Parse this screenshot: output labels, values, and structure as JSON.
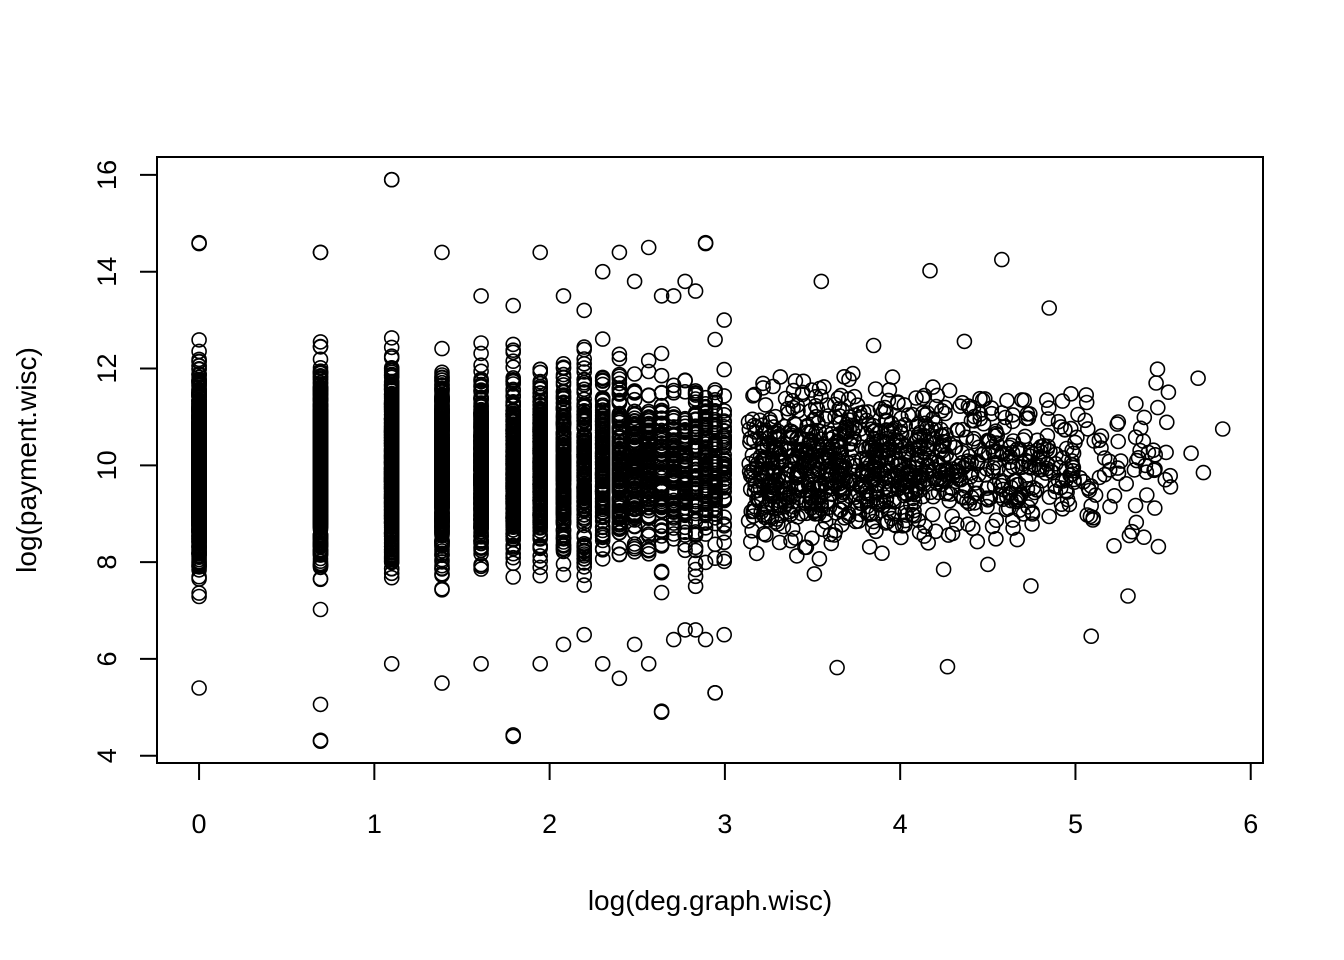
{
  "chart_data": {
    "type": "scatter",
    "title": "",
    "xlabel": "log(deg.graph.wisc)",
    "ylabel": "log(payment.wisc)",
    "xlim": [
      -0.24,
      6.07
    ],
    "ylim": [
      3.85,
      16.37
    ],
    "x_ticks": [
      "0",
      "1",
      "2",
      "3",
      "4",
      "5",
      "6"
    ],
    "y_ticks": [
      "4",
      "6",
      "8",
      "10",
      "12",
      "14",
      "16"
    ],
    "grid": false,
    "legend": "none",
    "marker": "open-circle",
    "colors": {
      "marker": "#000000",
      "axis": "#000000",
      "background": "#ffffff"
    },
    "discrete_columns": [
      {
        "x": 0.0,
        "y_min": 5.4,
        "y_max": 14.6,
        "count": 900
      },
      {
        "x": 0.693,
        "y_min": 4.3,
        "y_max": 14.4,
        "count": 650
      },
      {
        "x": 1.099,
        "y_min": 5.9,
        "y_max": 15.9,
        "count": 520
      },
      {
        "x": 1.386,
        "y_min": 5.5,
        "y_max": 14.4,
        "count": 420
      },
      {
        "x": 1.609,
        "y_min": 5.9,
        "y_max": 13.5,
        "count": 330
      },
      {
        "x": 1.792,
        "y_min": 4.4,
        "y_max": 13.3,
        "count": 280
      },
      {
        "x": 1.946,
        "y_min": 5.9,
        "y_max": 14.4,
        "count": 240
      },
      {
        "x": 2.079,
        "y_min": 6.3,
        "y_max": 13.5,
        "count": 200
      },
      {
        "x": 2.197,
        "y_min": 6.5,
        "y_max": 13.2,
        "count": 170
      },
      {
        "x": 2.303,
        "y_min": 5.9,
        "y_max": 14.0,
        "count": 150
      },
      {
        "x": 2.398,
        "y_min": 5.6,
        "y_max": 14.4,
        "count": 130
      },
      {
        "x": 2.485,
        "y_min": 6.3,
        "y_max": 13.8,
        "count": 110
      },
      {
        "x": 2.565,
        "y_min": 5.9,
        "y_max": 14.5,
        "count": 100
      },
      {
        "x": 2.639,
        "y_min": 4.9,
        "y_max": 13.5,
        "count": 90
      },
      {
        "x": 2.708,
        "y_min": 6.4,
        "y_max": 13.5,
        "count": 80
      },
      {
        "x": 2.773,
        "y_min": 6.6,
        "y_max": 13.8,
        "count": 72
      },
      {
        "x": 2.833,
        "y_min": 6.6,
        "y_max": 13.6,
        "count": 66
      },
      {
        "x": 2.89,
        "y_min": 6.4,
        "y_max": 14.6,
        "count": 60
      },
      {
        "x": 2.944,
        "y_min": 5.3,
        "y_max": 12.6,
        "count": 55
      },
      {
        "x": 2.996,
        "y_min": 6.5,
        "y_max": 13.0,
        "count": 50
      }
    ],
    "continuous_cloud": {
      "x_min": 3.0,
      "x_max": 5.84,
      "y_min": 5.8,
      "y_max": 14.2,
      "center_y": 10.0,
      "count": 1100
    },
    "notable_points": [
      {
        "x": 1.099,
        "y": 15.9
      },
      {
        "x": 0.0,
        "y": 14.58
      },
      {
        "x": 0.693,
        "y": 14.4
      },
      {
        "x": 2.89,
        "y": 14.58
      },
      {
        "x": 4.58,
        "y": 14.25
      },
      {
        "x": 4.17,
        "y": 14.02
      },
      {
        "x": 0.693,
        "y": 4.32
      },
      {
        "x": 1.792,
        "y": 4.43
      },
      {
        "x": 0.693,
        "y": 5.06
      },
      {
        "x": 2.639,
        "y": 4.92
      },
      {
        "x": 2.944,
        "y": 5.3
      },
      {
        "x": 5.84,
        "y": 10.75
      },
      {
        "x": 5.7,
        "y": 11.8
      },
      {
        "x": 5.46,
        "y": 11.7
      },
      {
        "x": 5.09,
        "y": 6.47
      },
      {
        "x": 4.27,
        "y": 5.84
      },
      {
        "x": 3.64,
        "y": 5.82
      },
      {
        "x": 4.85,
        "y": 13.25
      },
      {
        "x": 3.55,
        "y": 13.8
      },
      {
        "x": 5.3,
        "y": 7.3
      },
      {
        "x": 5.73,
        "y": 9.85
      },
      {
        "x": 5.66,
        "y": 10.25
      }
    ]
  }
}
